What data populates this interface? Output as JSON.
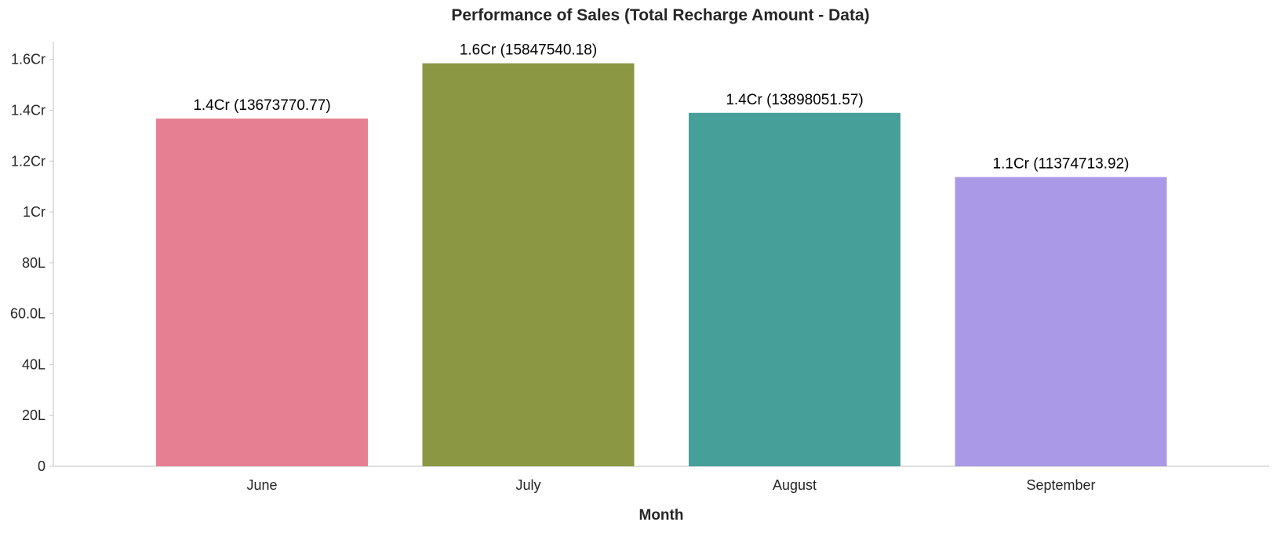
{
  "chart_data": {
    "type": "bar",
    "title": "Performance of Sales (Total Recharge Amount - Data)",
    "xlabel": "Month",
    "ylabel": "",
    "categories": [
      "June",
      "July",
      "August",
      "September"
    ],
    "values": [
      13673770.77,
      15847540.18,
      13898051.57,
      11374713.92
    ],
    "data_labels": [
      "1.4Cr (13673770.77)",
      "1.6Cr (15847540.18)",
      "1.4Cr (13898051.57)",
      "1.1Cr (11374713.92)"
    ],
    "colors": [
      "#e77f92",
      "#8c9744",
      "#479f9a",
      "#aa99e6"
    ],
    "ylim": [
      0,
      16700000
    ],
    "yticks": [
      {
        "value": 0,
        "label": "0"
      },
      {
        "value": 2000000,
        "label": "20L"
      },
      {
        "value": 4000000,
        "label": "40L"
      },
      {
        "value": 6000000,
        "label": "60.0L"
      },
      {
        "value": 8000000,
        "label": "80L"
      },
      {
        "value": 10000000,
        "label": "1Cr"
      },
      {
        "value": 12000000,
        "label": "1.2Cr"
      },
      {
        "value": 14000000,
        "label": "1.4Cr"
      },
      {
        "value": 16000000,
        "label": "1.6Cr"
      }
    ],
    "grid": false,
    "legend": "none"
  }
}
